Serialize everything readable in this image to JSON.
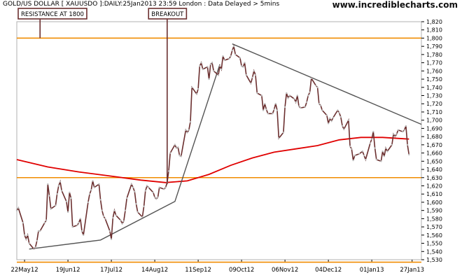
{
  "header": {
    "symbol_line": "GOLD/US DOLLAR [ XAUUSDO ]:DAILY:25Jan2013 23:59 London : Data Delayed > 5mins",
    "site": "www.incrediblecharts.com"
  },
  "colors": {
    "price_line": "#6b2f2f",
    "ma_line": "#e00000",
    "support_resistance": "#f08c00",
    "trendline": "#555555",
    "annotation_border": "#6b2f2f",
    "grid": "#b0b0b0",
    "axis": "#000000"
  },
  "chart_data": {
    "type": "line",
    "title": "GOLD/US DOLLAR [ XAUUSDO ]:DAILY",
    "xlabel": "",
    "ylabel": "",
    "ylim": [
      1530,
      1820
    ],
    "yticks": [
      1530,
      1540,
      1550,
      1560,
      1570,
      1580,
      1590,
      1600,
      1610,
      1620,
      1630,
      1640,
      1650,
      1660,
      1670,
      1680,
      1690,
      1700,
      1710,
      1720,
      1730,
      1740,
      1750,
      1760,
      1770,
      1780,
      1790,
      1800,
      1810,
      1820
    ],
    "xlim": [
      "2012-05-17",
      "2013-02-02"
    ],
    "xticks": [
      {
        "date": "2012-05-22",
        "label": "22May12"
      },
      {
        "date": "2012-06-19",
        "label": "19Jun12"
      },
      {
        "date": "2012-07-17",
        "label": "17Jul12"
      },
      {
        "date": "2012-08-14",
        "label": "14Aug12"
      },
      {
        "date": "2012-09-11",
        "label": "11Sep12"
      },
      {
        "date": "2012-10-09",
        "label": "09Oct12"
      },
      {
        "date": "2012-11-06",
        "label": "06Nov12"
      },
      {
        "date": "2012-12-04",
        "label": "04Dec12"
      },
      {
        "date": "2013-01-01",
        "label": "01Jan13"
      },
      {
        "date": "2013-01-27",
        "label": "27Jan13"
      }
    ],
    "series": [
      {
        "style": "price",
        "points": [
          [
            "2012-05-17",
            1590
          ],
          [
            "2012-05-18",
            1593
          ],
          [
            "2012-05-21",
            1575
          ],
          [
            "2012-05-22",
            1560
          ],
          [
            "2012-05-23",
            1555
          ],
          [
            "2012-05-24",
            1560
          ],
          [
            "2012-05-25",
            1550
          ],
          [
            "2012-05-28",
            1543
          ],
          [
            "2012-05-29",
            1545
          ],
          [
            "2012-05-30",
            1553
          ],
          [
            "2012-05-31",
            1565
          ],
          [
            "2012-06-01",
            1565
          ],
          [
            "2012-06-04",
            1575
          ],
          [
            "2012-06-05",
            1578
          ],
          [
            "2012-06-06",
            1622
          ],
          [
            "2012-06-07",
            1608
          ],
          [
            "2012-06-08",
            1592
          ],
          [
            "2012-06-11",
            1596
          ],
          [
            "2012-06-12",
            1610
          ],
          [
            "2012-06-13",
            1620
          ],
          [
            "2012-06-14",
            1625
          ],
          [
            "2012-06-15",
            1614
          ],
          [
            "2012-06-18",
            1601
          ],
          [
            "2012-06-19",
            1588
          ],
          [
            "2012-06-20",
            1612
          ],
          [
            "2012-06-21",
            1605
          ],
          [
            "2012-06-22",
            1570
          ],
          [
            "2012-06-25",
            1572
          ],
          [
            "2012-06-26",
            1575
          ],
          [
            "2012-06-27",
            1580
          ],
          [
            "2012-06-28",
            1565
          ],
          [
            "2012-06-29",
            1560
          ],
          [
            "2012-07-02",
            1600
          ],
          [
            "2012-07-03",
            1610
          ],
          [
            "2012-07-04",
            1615
          ],
          [
            "2012-07-05",
            1626
          ],
          [
            "2012-07-06",
            1618
          ],
          [
            "2012-07-09",
            1622
          ],
          [
            "2012-07-10",
            1603
          ],
          [
            "2012-07-11",
            1590
          ],
          [
            "2012-07-12",
            1583
          ],
          [
            "2012-07-13",
            1580
          ],
          [
            "2012-07-16",
            1565
          ],
          [
            "2012-07-17",
            1555
          ],
          [
            "2012-07-18",
            1581
          ],
          [
            "2012-07-19",
            1590
          ],
          [
            "2012-07-20",
            1584
          ],
          [
            "2012-07-23",
            1578
          ],
          [
            "2012-07-24",
            1574
          ],
          [
            "2012-07-25",
            1577
          ],
          [
            "2012-07-26",
            1590
          ],
          [
            "2012-07-27",
            1605
          ],
          [
            "2012-07-30",
            1622
          ],
          [
            "2012-07-31",
            1618
          ],
          [
            "2012-08-01",
            1613
          ],
          [
            "2012-08-02",
            1598
          ],
          [
            "2012-08-03",
            1588
          ],
          [
            "2012-08-06",
            1582
          ],
          [
            "2012-08-07",
            1595
          ],
          [
            "2012-08-08",
            1614
          ],
          [
            "2012-08-09",
            1620
          ],
          [
            "2012-08-10",
            1618
          ],
          [
            "2012-08-13",
            1612
          ],
          [
            "2012-08-14",
            1606
          ],
          [
            "2012-08-15",
            1604
          ],
          [
            "2012-08-16",
            1606
          ],
          [
            "2012-08-17",
            1618
          ],
          [
            "2012-08-20",
            1616
          ],
          [
            "2012-08-21",
            1618
          ],
          [
            "2012-08-22",
            1624
          ],
          [
            "2012-08-23",
            1638
          ],
          [
            "2012-08-24",
            1660
          ],
          [
            "2012-08-27",
            1670
          ],
          [
            "2012-08-28",
            1666
          ],
          [
            "2012-08-29",
            1667
          ],
          [
            "2012-08-30",
            1657
          ],
          [
            "2012-08-31",
            1656
          ],
          [
            "2012-09-03",
            1688
          ],
          [
            "2012-09-04",
            1685
          ],
          [
            "2012-09-05",
            1688
          ],
          [
            "2012-09-06",
            1698
          ],
          [
            "2012-09-07",
            1740
          ],
          [
            "2012-09-10",
            1732
          ],
          [
            "2012-09-11",
            1738
          ],
          [
            "2012-09-12",
            1766
          ],
          [
            "2012-09-13",
            1770
          ],
          [
            "2012-09-14",
            1762
          ],
          [
            "2012-09-17",
            1765
          ],
          [
            "2012-09-18",
            1750
          ],
          [
            "2012-09-19",
            1768
          ],
          [
            "2012-09-20",
            1770
          ],
          [
            "2012-09-21",
            1760
          ],
          [
            "2012-09-24",
            1755
          ],
          [
            "2012-09-25",
            1766
          ],
          [
            "2012-09-26",
            1762
          ],
          [
            "2012-09-27",
            1778
          ],
          [
            "2012-09-28",
            1773
          ],
          [
            "2012-10-01",
            1775
          ],
          [
            "2012-10-02",
            1778
          ],
          [
            "2012-10-03",
            1785
          ],
          [
            "2012-10-04",
            1790
          ],
          [
            "2012-10-05",
            1780
          ],
          [
            "2012-10-08",
            1776
          ],
          [
            "2012-10-09",
            1766
          ],
          [
            "2012-10-10",
            1765
          ],
          [
            "2012-10-11",
            1770
          ],
          [
            "2012-10-12",
            1755
          ],
          [
            "2012-10-15",
            1745
          ],
          [
            "2012-10-16",
            1752
          ],
          [
            "2012-10-17",
            1760
          ],
          [
            "2012-10-18",
            1755
          ],
          [
            "2012-10-19",
            1733
          ],
          [
            "2012-10-22",
            1730
          ],
          [
            "2012-10-23",
            1712
          ],
          [
            "2012-10-24",
            1720
          ],
          [
            "2012-10-25",
            1713
          ],
          [
            "2012-10-26",
            1708
          ],
          [
            "2012-10-29",
            1708
          ],
          [
            "2012-10-30",
            1713
          ],
          [
            "2012-10-31",
            1720
          ],
          [
            "2012-11-01",
            1712
          ],
          [
            "2012-11-02",
            1678
          ],
          [
            "2012-11-05",
            1685
          ],
          [
            "2012-11-06",
            1716
          ],
          [
            "2012-11-07",
            1733
          ],
          [
            "2012-11-08",
            1727
          ],
          [
            "2012-11-09",
            1730
          ],
          [
            "2012-11-12",
            1726
          ],
          [
            "2012-11-13",
            1722
          ],
          [
            "2012-11-14",
            1730
          ],
          [
            "2012-11-15",
            1717
          ],
          [
            "2012-11-16",
            1715
          ],
          [
            "2012-11-19",
            1716
          ],
          [
            "2012-11-20",
            1722
          ],
          [
            "2012-11-21",
            1730
          ],
          [
            "2012-11-22",
            1734
          ],
          [
            "2012-11-23",
            1751
          ],
          [
            "2012-11-26",
            1742
          ],
          [
            "2012-11-27",
            1740
          ],
          [
            "2012-11-28",
            1720
          ],
          [
            "2012-11-29",
            1718
          ],
          [
            "2012-11-30",
            1712
          ],
          [
            "2012-12-03",
            1706
          ],
          [
            "2012-12-04",
            1696
          ],
          [
            "2012-12-05",
            1702
          ],
          [
            "2012-12-06",
            1699
          ],
          [
            "2012-12-07",
            1703
          ],
          [
            "2012-12-10",
            1712
          ],
          [
            "2012-12-11",
            1709
          ],
          [
            "2012-12-12",
            1704
          ],
          [
            "2012-12-13",
            1693
          ],
          [
            "2012-12-14",
            1689
          ],
          [
            "2012-12-17",
            1700
          ],
          [
            "2012-12-18",
            1668
          ],
          [
            "2012-12-19",
            1665
          ],
          [
            "2012-12-20",
            1651
          ],
          [
            "2012-12-21",
            1657
          ],
          [
            "2012-12-24",
            1659
          ],
          [
            "2012-12-26",
            1662
          ],
          [
            "2012-12-27",
            1657
          ],
          [
            "2012-12-28",
            1652
          ],
          [
            "2012-12-31",
            1672
          ],
          [
            "2013-01-01",
            1677
          ],
          [
            "2013-01-02",
            1686
          ],
          [
            "2013-01-03",
            1666
          ],
          [
            "2013-01-04",
            1652
          ],
          [
            "2013-01-07",
            1650
          ],
          [
            "2013-01-08",
            1662
          ],
          [
            "2013-01-09",
            1656
          ],
          [
            "2013-01-10",
            1666
          ],
          [
            "2013-01-11",
            1662
          ],
          [
            "2013-01-14",
            1670
          ],
          [
            "2013-01-15",
            1683
          ],
          [
            "2013-01-16",
            1680
          ],
          [
            "2013-01-17",
            1683
          ],
          [
            "2013-01-18",
            1688
          ],
          [
            "2013-01-21",
            1686
          ],
          [
            "2013-01-22",
            1688
          ],
          [
            "2013-01-23",
            1693
          ],
          [
            "2013-01-24",
            1670
          ],
          [
            "2013-01-25",
            1658
          ]
        ]
      },
      {
        "style": "moving_average",
        "points": [
          [
            "2012-05-17",
            1652
          ],
          [
            "2012-06-06",
            1643
          ],
          [
            "2012-06-26",
            1637
          ],
          [
            "2012-07-16",
            1632
          ],
          [
            "2012-08-05",
            1627
          ],
          [
            "2012-08-21",
            1624
          ],
          [
            "2012-09-04",
            1626
          ],
          [
            "2012-09-18",
            1634
          ],
          [
            "2012-10-02",
            1645
          ],
          [
            "2012-10-16",
            1654
          ],
          [
            "2012-10-30",
            1661
          ],
          [
            "2012-11-13",
            1665
          ],
          [
            "2012-11-27",
            1669
          ],
          [
            "2012-12-11",
            1676
          ],
          [
            "2012-12-25",
            1679
          ],
          [
            "2013-01-08",
            1679
          ],
          [
            "2013-01-25",
            1677
          ]
        ]
      }
    ],
    "horizontal_lines": [
      {
        "name": "resistance",
        "value": 1800
      },
      {
        "name": "support",
        "value": 1630
      },
      {
        "name": "bottom",
        "value": 1527
      }
    ],
    "trendlines": [
      {
        "name": "lower-uptrend",
        "points": [
          [
            "2012-05-25",
            1543
          ],
          [
            "2012-07-10",
            1554
          ],
          [
            "2012-08-27",
            1601
          ],
          [
            "2012-09-25",
            1768
          ]
        ]
      },
      {
        "name": "descending-top",
        "points": [
          [
            "2012-10-03",
            1793
          ],
          [
            "2013-02-02",
            1695
          ]
        ]
      }
    ],
    "annotations": [
      {
        "text": "RESISTANCE AT 1800",
        "date": "2012-06-01",
        "value": 1800
      },
      {
        "text": "BREAKOUT",
        "date": "2012-08-22",
        "value": 1622
      }
    ]
  }
}
